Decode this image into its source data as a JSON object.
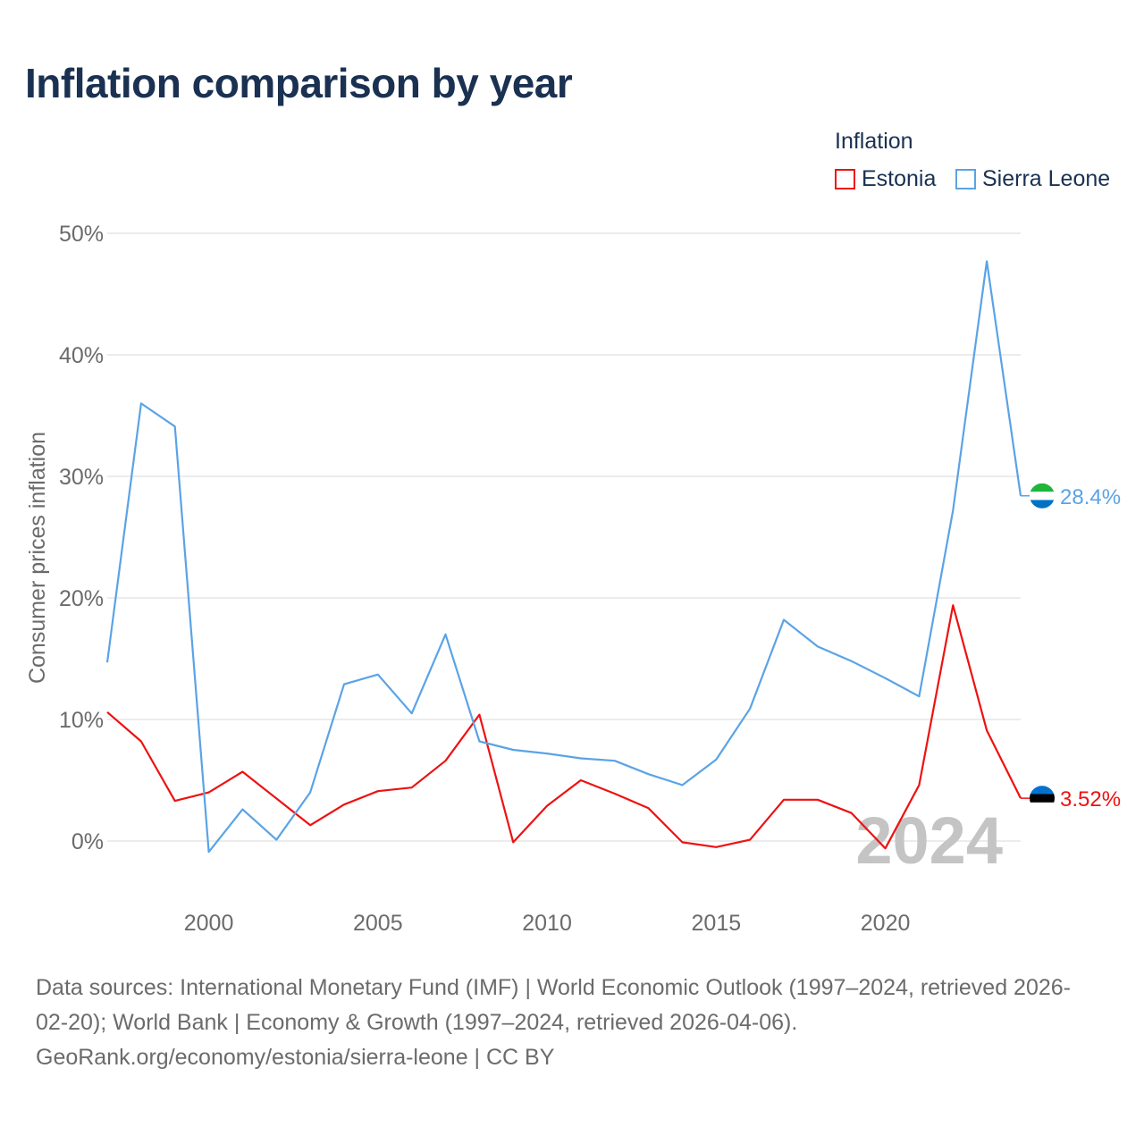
{
  "title": "Inflation comparison by year",
  "legend": {
    "title": "Inflation",
    "items": [
      {
        "label": "Estonia",
        "color": "#ee1111"
      },
      {
        "label": "Sierra Leone",
        "color": "#5aa3e6"
      }
    ]
  },
  "footer": {
    "line1": "Data sources: International Monetary Fund (IMF) | World Economic Outlook (1997–2024, retrieved 2026-",
    "line2": "02-20); World Bank | Economy & Growth (1997–2024, retrieved 2026-04-06).",
    "line3": "GeoRank.org/economy/estonia/sierra-leone | CC BY"
  },
  "chart_data": {
    "type": "line",
    "title": "Inflation comparison by year",
    "xlabel": "",
    "ylabel": "Consumer prices inflation",
    "xlim": [
      1997,
      2024
    ],
    "ylim": [
      0,
      50
    ],
    "x_ticks": [
      2000,
      2005,
      2010,
      2015,
      2020
    ],
    "y_ticks": [
      0,
      10,
      20,
      30,
      40,
      50
    ],
    "y_tick_labels": [
      "0%",
      "10%",
      "20%",
      "30%",
      "40%",
      "50%"
    ],
    "watermark_year": "2024",
    "x": [
      1997,
      1998,
      1999,
      2000,
      2001,
      2002,
      2003,
      2004,
      2005,
      2006,
      2007,
      2008,
      2009,
      2010,
      2011,
      2012,
      2013,
      2014,
      2015,
      2016,
      2017,
      2018,
      2019,
      2020,
      2021,
      2022,
      2023,
      2024
    ],
    "series": [
      {
        "name": "Estonia",
        "color": "#ee1111",
        "end_label": "3.52%",
        "flag_colors": [
          "#0072ce",
          "#000000",
          "#ffffff"
        ],
        "values": [
          10.6,
          8.2,
          3.3,
          4.0,
          5.7,
          3.5,
          1.3,
          3.0,
          4.1,
          4.4,
          6.6,
          10.4,
          -0.1,
          2.9,
          5.0,
          3.9,
          2.7,
          -0.1,
          -0.5,
          0.1,
          3.4,
          3.4,
          2.3,
          -0.6,
          4.6,
          19.4,
          9.1,
          3.52
        ]
      },
      {
        "name": "Sierra Leone",
        "color": "#5aa3e6",
        "end_label": "28.4%",
        "flag_colors": [
          "#1eb53a",
          "#ffffff",
          "#0072c6"
        ],
        "values": [
          14.7,
          36.0,
          34.1,
          -0.9,
          2.6,
          0.1,
          4.0,
          12.9,
          13.7,
          10.5,
          17.0,
          8.2,
          7.5,
          7.2,
          6.8,
          6.6,
          5.5,
          4.6,
          6.7,
          10.9,
          18.2,
          16.0,
          14.8,
          13.4,
          11.9,
          27.2,
          47.7,
          28.4
        ]
      }
    ]
  }
}
